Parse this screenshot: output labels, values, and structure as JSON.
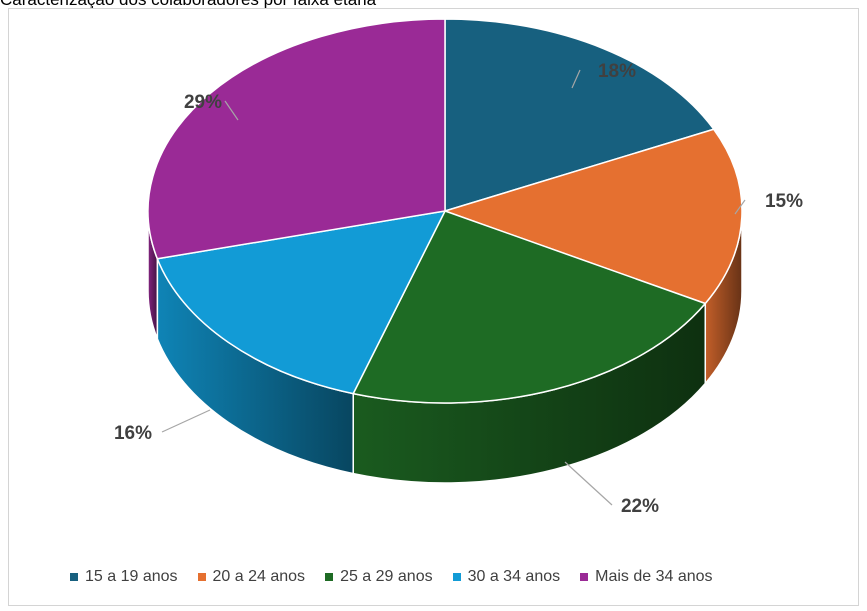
{
  "chart_data": {
    "type": "pie",
    "title": "Caracterização dos colaboradores por faixa etária",
    "title_prefix": "",
    "categories": [
      "15 a 19 anos",
      "20 a 24 anos",
      "25 a 29 anos",
      "30 a 34 anos",
      "Mais de 34 anos"
    ],
    "values": [
      18,
      15,
      22,
      16,
      29
    ],
    "labels": [
      "18%",
      "15%",
      "22%",
      "16%",
      "29%"
    ],
    "colors": [
      "#17607f",
      "#e57030",
      "#1e6b24",
      "#129bd6",
      "#9a2a96"
    ],
    "legend_position": "bottom",
    "style": "3d"
  }
}
